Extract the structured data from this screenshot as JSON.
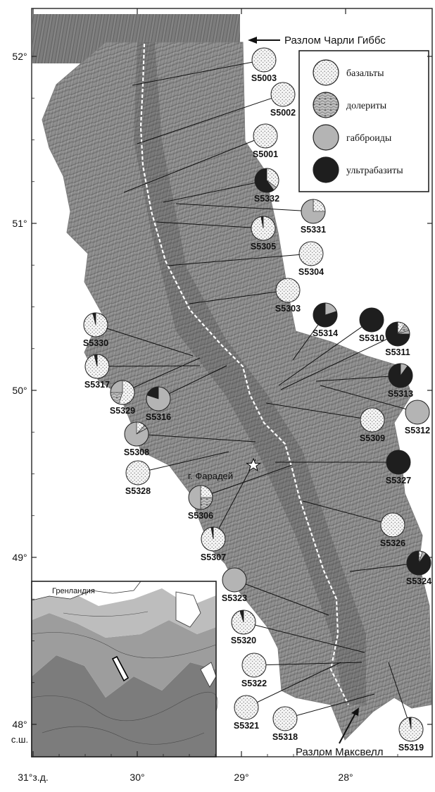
{
  "axes": {
    "lat_ticks": [
      {
        "value": 52,
        "label": "52°"
      },
      {
        "value": 51,
        "label": "51°"
      },
      {
        "value": 50,
        "label": "50°"
      },
      {
        "value": 49,
        "label": "49°"
      },
      {
        "value": 48,
        "label": "48°"
      }
    ],
    "lat_unit_label": "с.ш.",
    "lon_ticks": [
      {
        "value": 31,
        "label": "31°з.д."
      },
      {
        "value": 30,
        "label": "30°"
      },
      {
        "value": 29,
        "label": "29°"
      },
      {
        "value": 28,
        "label": "28°"
      }
    ]
  },
  "annotations": {
    "charlie_gibbs": "Разлом Чарли Гиббс",
    "maxwell": "Разлом Максвелл",
    "faraday": "г. Фарадей",
    "greenland": "Гренландия"
  },
  "legend": [
    {
      "key": "basalt",
      "label": "базальты",
      "color": "#f4f4f4"
    },
    {
      "key": "dolerite",
      "label": "долериты",
      "color": "#8f8f8f"
    },
    {
      "key": "gabbro",
      "label": "габброиды",
      "color": "#b4b4b4"
    },
    {
      "key": "ultra",
      "label": "ультрабазиты",
      "color": "#1e1e1e"
    }
  ],
  "stations": [
    {
      "id": "S5003",
      "lon": 30.0,
      "lat": 51.82,
      "basalt": 1
    },
    {
      "id": "S5002",
      "lon": 29.98,
      "lat": 51.47,
      "basalt": 1
    },
    {
      "id": "S5001",
      "lon": 30.2,
      "lat": 51.18,
      "basalt": 1
    },
    {
      "id": "S5332",
      "lon": 29.58,
      "lat": 51.12,
      "basalt": 0.35,
      "gabbro": 0.05,
      "ultra": 0.6
    },
    {
      "id": "S5331",
      "lon": 29.55,
      "lat": 51.11,
      "basalt": 0.25,
      "gabbro": 0.75
    },
    {
      "id": "S5305",
      "lon": 29.7,
      "lat": 51.0,
      "basalt": 0.97,
      "ultra": 0.03
    },
    {
      "id": "S5304",
      "lon": 29.4,
      "lat": 50.74,
      "basalt": 1
    },
    {
      "id": "S5303",
      "lon": 29.35,
      "lat": 50.52,
      "basalt": 1
    },
    {
      "id": "S5330",
      "lon": 29.35,
      "lat": 50.21,
      "basalt": 0.96,
      "ultra": 0.04
    },
    {
      "id": "S5317",
      "lon": 29.3,
      "lat": 50.16,
      "basalt": 0.96,
      "ultra": 0.04
    },
    {
      "id": "S5329",
      "lon": 29.18,
      "lat": 50.15,
      "basalt": 0.55,
      "dolerite": 0.2,
      "gabbro": 0.25
    },
    {
      "id": "S5316",
      "lon": 29.3,
      "lat": 50.19,
      "gabbro": 0.8,
      "ultra": 0.2
    },
    {
      "id": "S5314",
      "lon": 28.45,
      "lat": 50.18,
      "gabbro": 0.2,
      "ultra": 0.8
    },
    {
      "id": "S5310",
      "lon": 28.55,
      "lat": 50.01,
      "ultra": 1
    },
    {
      "id": "S5311",
      "lon": 28.57,
      "lat": 50.03,
      "basalt": 0.1,
      "dolerite": 0.1,
      "gabbro": 0.05,
      "ultra": 0.75
    },
    {
      "id": "S5313",
      "lon": 28.2,
      "lat": 50.07,
      "gabbro": 0.1,
      "ultra": 0.9
    },
    {
      "id": "S5312",
      "lon": 28.2,
      "lat": 50.03,
      "gabbro": 1
    },
    {
      "id": "S5309",
      "lon": 28.8,
      "lat": 49.93,
      "basalt": 1
    },
    {
      "id": "S5308",
      "lon": 28.98,
      "lat": 49.7,
      "basalt": 0.12,
      "dolerite": 0.05,
      "gabbro": 0.83
    },
    {
      "id": "S5328",
      "lon": 29.22,
      "lat": 49.63,
      "basalt": 1
    },
    {
      "id": "S5327",
      "lon": 28.6,
      "lat": 49.56,
      "ultra": 1
    },
    {
      "id": "S5306",
      "lon": 28.77,
      "lat": 49.58,
      "basalt": 0.25,
      "dolerite": 0.25,
      "gabbro": 0.5
    },
    {
      "id": "S5326",
      "lon": 28.2,
      "lat": 49.36,
      "basalt": 1
    },
    {
      "id": "S5307",
      "lon": 28.85,
      "lat": 49.55,
      "basalt": 0.97,
      "ultra": 0.03
    },
    {
      "id": "S5324",
      "lon": 28.0,
      "lat": 48.92,
      "basalt": 0.05,
      "gabbro": 0.05,
      "ultra": 0.9
    },
    {
      "id": "S5323",
      "lon": 28.45,
      "lat": 48.65,
      "gabbro": 1
    },
    {
      "id": "S5320",
      "lon": 28.03,
      "lat": 48.43,
      "basalt": 0.95,
      "ultra": 0.05
    },
    {
      "id": "S5322",
      "lon": 28.06,
      "lat": 48.37,
      "basalt": 1
    },
    {
      "id": "S5321",
      "lon": 28.02,
      "lat": 48.36,
      "basalt": 1
    },
    {
      "id": "S5318",
      "lon": 27.84,
      "lat": 48.19,
      "basalt": 1
    },
    {
      "id": "S5319",
      "lon": 27.82,
      "lat": 48.37,
      "basalt": 0.97,
      "ultra": 0.03
    }
  ]
}
